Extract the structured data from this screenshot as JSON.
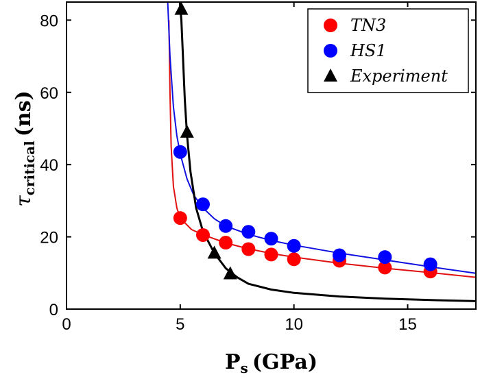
{
  "chart_data": {
    "type": "scatter",
    "xlabel": {
      "main": "P",
      "sub": "s",
      "unit": "(GPa)"
    },
    "ylabel": {
      "main": "τ",
      "sub": "critical",
      "unit": "(ns)"
    },
    "xlim": [
      0,
      18
    ],
    "ylim": [
      0,
      85
    ],
    "xticks": [
      0,
      5,
      10,
      15
    ],
    "yticks": [
      0,
      20,
      40,
      60,
      80
    ],
    "grid": false,
    "legend_position": "top-right",
    "series": [
      {
        "name": "TN3",
        "marker": "circle",
        "color": "#ff0000",
        "line_color": "#e01010",
        "points": [
          {
            "x": 5,
            "y": 25.2
          },
          {
            "x": 6,
            "y": 20.5
          },
          {
            "x": 7,
            "y": 18.4
          },
          {
            "x": 8,
            "y": 16.6
          },
          {
            "x": 9,
            "y": 15.1
          },
          {
            "x": 10,
            "y": 13.8
          },
          {
            "x": 12,
            "y": 13.4
          },
          {
            "x": 14,
            "y": 11.5
          },
          {
            "x": 16,
            "y": 10.4
          }
        ],
        "fit_curve": [
          {
            "x": 4.5,
            "y": 80.0
          },
          {
            "x": 4.55,
            "y": 60.0
          },
          {
            "x": 4.6,
            "y": 45.0
          },
          {
            "x": 4.7,
            "y": 34.0
          },
          {
            "x": 4.85,
            "y": 28.0
          },
          {
            "x": 5.0,
            "y": 25.2
          },
          {
            "x": 5.5,
            "y": 22.0
          },
          {
            "x": 6.0,
            "y": 20.6
          },
          {
            "x": 7.0,
            "y": 18.3
          },
          {
            "x": 8.0,
            "y": 16.7
          },
          {
            "x": 9.0,
            "y": 15.4
          },
          {
            "x": 10.0,
            "y": 14.4
          },
          {
            "x": 12.0,
            "y": 12.7
          },
          {
            "x": 14.0,
            "y": 11.3
          },
          {
            "x": 16.0,
            "y": 10.1
          },
          {
            "x": 18.0,
            "y": 8.8
          }
        ]
      },
      {
        "name": "HS1",
        "marker": "circle",
        "color": "#0000ff",
        "line_color": "#1010e0",
        "points": [
          {
            "x": 5,
            "y": 43.5
          },
          {
            "x": 6,
            "y": 29.0
          },
          {
            "x": 7,
            "y": 23.0
          },
          {
            "x": 8,
            "y": 21.4
          },
          {
            "x": 9,
            "y": 19.5
          },
          {
            "x": 10,
            "y": 17.5
          },
          {
            "x": 12,
            "y": 14.9
          },
          {
            "x": 14,
            "y": 14.4
          },
          {
            "x": 16,
            "y": 12.4
          }
        ],
        "fit_curve": [
          {
            "x": 4.45,
            "y": 85.0
          },
          {
            "x": 4.55,
            "y": 70.0
          },
          {
            "x": 4.7,
            "y": 56.0
          },
          {
            "x": 4.85,
            "y": 48.0
          },
          {
            "x": 5.0,
            "y": 43.0
          },
          {
            "x": 5.3,
            "y": 36.0
          },
          {
            "x": 5.6,
            "y": 31.5
          },
          {
            "x": 6.0,
            "y": 28.0
          },
          {
            "x": 6.5,
            "y": 25.0
          },
          {
            "x": 7.0,
            "y": 23.0
          },
          {
            "x": 8.0,
            "y": 20.7
          },
          {
            "x": 9.0,
            "y": 19.0
          },
          {
            "x": 10.0,
            "y": 17.7
          },
          {
            "x": 12.0,
            "y": 15.5
          },
          {
            "x": 14.0,
            "y": 13.6
          },
          {
            "x": 16.0,
            "y": 11.7
          },
          {
            "x": 18.0,
            "y": 9.9
          }
        ]
      },
      {
        "name": "Experiment",
        "marker": "triangle",
        "color": "#000000",
        "line_color": "#000000",
        "points": [
          {
            "x": 5.05,
            "y": 83.0
          },
          {
            "x": 5.3,
            "y": 49.0
          },
          {
            "x": 6.5,
            "y": 15.5
          },
          {
            "x": 7.2,
            "y": 9.8
          }
        ],
        "fit_curve": [
          {
            "x": 4.98,
            "y": 85.0
          },
          {
            "x": 5.05,
            "y": 80.0
          },
          {
            "x": 5.12,
            "y": 70.0
          },
          {
            "x": 5.2,
            "y": 58.0
          },
          {
            "x": 5.3,
            "y": 48.0
          },
          {
            "x": 5.45,
            "y": 38.0
          },
          {
            "x": 5.7,
            "y": 28.0
          },
          {
            "x": 6.0,
            "y": 21.5
          },
          {
            "x": 6.5,
            "y": 15.5
          },
          {
            "x": 7.0,
            "y": 11.3
          },
          {
            "x": 7.5,
            "y": 8.8
          },
          {
            "x": 8.0,
            "y": 7.0
          },
          {
            "x": 9.0,
            "y": 5.4
          },
          {
            "x": 10.0,
            "y": 4.5
          },
          {
            "x": 12.0,
            "y": 3.5
          },
          {
            "x": 14.0,
            "y": 2.9
          },
          {
            "x": 16.0,
            "y": 2.5
          },
          {
            "x": 18.0,
            "y": 2.2
          }
        ]
      }
    ]
  }
}
